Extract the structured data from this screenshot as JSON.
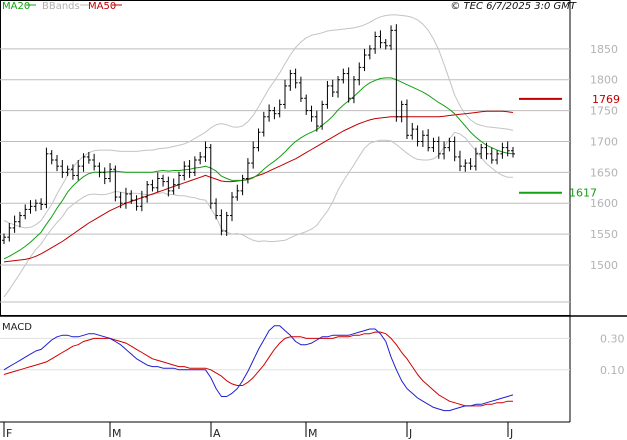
{
  "chart_data": {
    "type": "line",
    "legend": [
      {
        "label": "MA20",
        "color": "#14a014"
      },
      {
        "label": "BBands",
        "color": "#bdbdbd"
      },
      {
        "label": "MA50",
        "color": "#c00000"
      }
    ],
    "legend_position": "top-left",
    "copyright": "© TEC 6/7/2025 3:0 GMT",
    "months": [
      {
        "label": "F",
        "index": 0
      },
      {
        "label": "M",
        "index": 20
      },
      {
        "label": "A",
        "index": 39
      },
      {
        "label": "M",
        "index": 57
      },
      {
        "label": "J",
        "index": 76
      },
      {
        "label": "J",
        "index": 95
      }
    ],
    "price": {
      "ylim": [
        1440,
        1900
      ],
      "ticks": [
        1500,
        1550,
        1600,
        1650,
        1700,
        1750,
        1800,
        1850
      ],
      "grid": true,
      "ohlc_close": [
        1545,
        1560,
        1570,
        1580,
        1590,
        1595,
        1600,
        1598,
        1680,
        1670,
        1660,
        1650,
        1655,
        1645,
        1660,
        1675,
        1670,
        1660,
        1650,
        1640,
        1655,
        1610,
        1600,
        1615,
        1605,
        1595,
        1610,
        1630,
        1625,
        1640,
        1635,
        1620,
        1630,
        1645,
        1660,
        1650,
        1670,
        1675,
        1690,
        1600,
        1580,
        1555,
        1580,
        1610,
        1620,
        1640,
        1665,
        1690,
        1715,
        1740,
        1750,
        1745,
        1760,
        1790,
        1810,
        1795,
        1770,
        1750,
        1740,
        1725,
        1760,
        1790,
        1780,
        1800,
        1810,
        1770,
        1800,
        1820,
        1840,
        1850,
        1870,
        1860,
        1855,
        1880,
        1740,
        1760,
        1710,
        1720,
        1700,
        1710,
        1690,
        1700,
        1680,
        1690,
        1700,
        1675,
        1660,
        1665,
        1660,
        1680,
        1690,
        1680,
        1670,
        1680,
        1690,
        1685,
        1680
      ],
      "ma20": [
        1510,
        1514,
        1519,
        1524,
        1530,
        1537,
        1545,
        1553,
        1566,
        1578,
        1592,
        1604,
        1618,
        1628,
        1636,
        1643,
        1648,
        1650,
        1650,
        1650,
        1651,
        1652,
        1651,
        1650,
        1650,
        1650,
        1650,
        1650,
        1650,
        1652,
        1653,
        1652,
        1653,
        1653,
        1654,
        1655,
        1657,
        1658,
        1660,
        1657,
        1652,
        1644,
        1640,
        1637,
        1637,
        1637,
        1638,
        1641,
        1647,
        1655,
        1662,
        1668,
        1675,
        1683,
        1692,
        1700,
        1706,
        1711,
        1715,
        1719,
        1726,
        1733,
        1741,
        1751,
        1759,
        1766,
        1773,
        1781,
        1789,
        1795,
        1799,
        1802,
        1803,
        1803,
        1800,
        1796,
        1792,
        1788,
        1784,
        1780,
        1775,
        1769,
        1763,
        1758,
        1752,
        1745,
        1735,
        1725,
        1715,
        1707,
        1700,
        1694,
        1690,
        1686,
        1683,
        1681,
        1680
      ],
      "bb_upper": [
        1572,
        1568,
        1565,
        1562,
        1560,
        1561,
        1565,
        1572,
        1585,
        1598,
        1615,
        1630,
        1645,
        1658,
        1668,
        1676,
        1682,
        1685,
        1686,
        1686,
        1686,
        1685,
        1684,
        1684,
        1684,
        1684,
        1685,
        1686,
        1686,
        1688,
        1689,
        1690,
        1692,
        1694,
        1696,
        1700,
        1705,
        1710,
        1715,
        1722,
        1727,
        1729,
        1727,
        1724,
        1723,
        1725,
        1732,
        1742,
        1756,
        1771,
        1786,
        1798,
        1811,
        1826,
        1840,
        1852,
        1861,
        1868,
        1872,
        1874,
        1876,
        1879,
        1880,
        1881,
        1882,
        1883,
        1884,
        1886,
        1889,
        1893,
        1898,
        1902,
        1904,
        1905,
        1905,
        1904,
        1903,
        1901,
        1897,
        1890,
        1880,
        1866,
        1848,
        1825,
        1800,
        1775,
        1758,
        1744,
        1735,
        1729,
        1726,
        1724,
        1723,
        1722,
        1721,
        1720,
        1718
      ],
      "bb_lower": [
        1448,
        1460,
        1473,
        1486,
        1500,
        1513,
        1525,
        1534,
        1547,
        1558,
        1569,
        1578,
        1591,
        1598,
        1604,
        1610,
        1614,
        1615,
        1614,
        1614,
        1616,
        1619,
        1618,
        1616,
        1616,
        1616,
        1615,
        1614,
        1614,
        1616,
        1617,
        1614,
        1614,
        1612,
        1612,
        1610,
        1609,
        1606,
        1605,
        1592,
        1577,
        1559,
        1553,
        1550,
        1551,
        1549,
        1544,
        1540,
        1538,
        1539,
        1538,
        1538,
        1539,
        1540,
        1544,
        1548,
        1551,
        1554,
        1558,
        1564,
        1576,
        1587,
        1602,
        1621,
        1636,
        1649,
        1662,
        1676,
        1689,
        1697,
        1700,
        1702,
        1702,
        1701,
        1695,
        1688,
        1681,
        1675,
        1671,
        1670,
        1670,
        1672,
        1678,
        1691,
        1704,
        1715,
        1712,
        1706,
        1695,
        1685,
        1674,
        1664,
        1657,
        1650,
        1645,
        1642,
        1642
      ],
      "ma50": [
        1505,
        1506,
        1507,
        1508,
        1509,
        1511,
        1514,
        1518,
        1523,
        1528,
        1533,
        1538,
        1544,
        1550,
        1556,
        1562,
        1568,
        1573,
        1578,
        1583,
        1588,
        1592,
        1596,
        1600,
        1603,
        1606,
        1609,
        1612,
        1615,
        1618,
        1621,
        1624,
        1627,
        1630,
        1633,
        1636,
        1639,
        1642,
        1645,
        1642,
        1639,
        1636,
        1635,
        1635,
        1636,
        1637,
        1639,
        1642,
        1645,
        1648,
        1652,
        1656,
        1660,
        1664,
        1668,
        1672,
        1677,
        1682,
        1687,
        1692,
        1697,
        1702,
        1707,
        1712,
        1717,
        1721,
        1725,
        1729,
        1732,
        1735,
        1737,
        1738,
        1739,
        1740,
        1740,
        1740,
        1740,
        1740,
        1740,
        1740,
        1740,
        1740,
        1740,
        1741,
        1742,
        1743,
        1744,
        1745,
        1746,
        1747,
        1748,
        1749,
        1749,
        1749,
        1749,
        1748,
        1747
      ]
    },
    "levels": [
      {
        "value": 1769,
        "label": "1769",
        "color": "#c00000"
      },
      {
        "value": 1617,
        "label": "1617",
        "color": "#14a014"
      }
    ],
    "macd": {
      "title": "MACD",
      "ylim": [
        -22,
        43
      ],
      "ticks": [
        10,
        30
      ],
      "tick_labels": [
        "0.10",
        "0.30"
      ],
      "macd_line": [
        10,
        12,
        14,
        16,
        18,
        20,
        22,
        23,
        26,
        29,
        31,
        32,
        32,
        31,
        31,
        32,
        33,
        33,
        32,
        31,
        30,
        28,
        26,
        23,
        20,
        17,
        15,
        13,
        12,
        12,
        11,
        11,
        11,
        10,
        10,
        10,
        10,
        10,
        10,
        5,
        -2,
        -7,
        -7,
        -5,
        -2,
        3,
        9,
        16,
        23,
        29,
        35,
        38,
        38,
        35,
        32,
        28,
        26,
        26,
        27,
        29,
        31,
        31,
        32,
        32,
        32,
        32,
        33,
        34,
        35,
        36,
        36,
        33,
        28,
        18,
        10,
        3,
        -2,
        -5,
        -8,
        -10,
        -12,
        -14,
        -15,
        -16,
        -16,
        -15,
        -14,
        -13,
        -13,
        -12,
        -12,
        -11,
        -10,
        -9,
        -8,
        -7,
        -6
      ],
      "signal_line": [
        7,
        8,
        9,
        10,
        11,
        12,
        13,
        14,
        15,
        17,
        19,
        21,
        23,
        25,
        26,
        28,
        29,
        30,
        30,
        30,
        30,
        29,
        28,
        27,
        25,
        23,
        21,
        19,
        17,
        16,
        15,
        14,
        13,
        12,
        12,
        11,
        11,
        11,
        11,
        10,
        8,
        6,
        3,
        1,
        0,
        0,
        2,
        5,
        9,
        13,
        18,
        23,
        27,
        30,
        31,
        31,
        31,
        30,
        30,
        30,
        30,
        30,
        30,
        31,
        31,
        31,
        32,
        32,
        33,
        33,
        34,
        34,
        33,
        30,
        26,
        21,
        17,
        12,
        7,
        3,
        0,
        -3,
        -6,
        -8,
        -10,
        -11,
        -12,
        -13,
        -13,
        -13,
        -13,
        -12,
        -12,
        -11,
        -11,
        -10,
        -10
      ]
    }
  }
}
